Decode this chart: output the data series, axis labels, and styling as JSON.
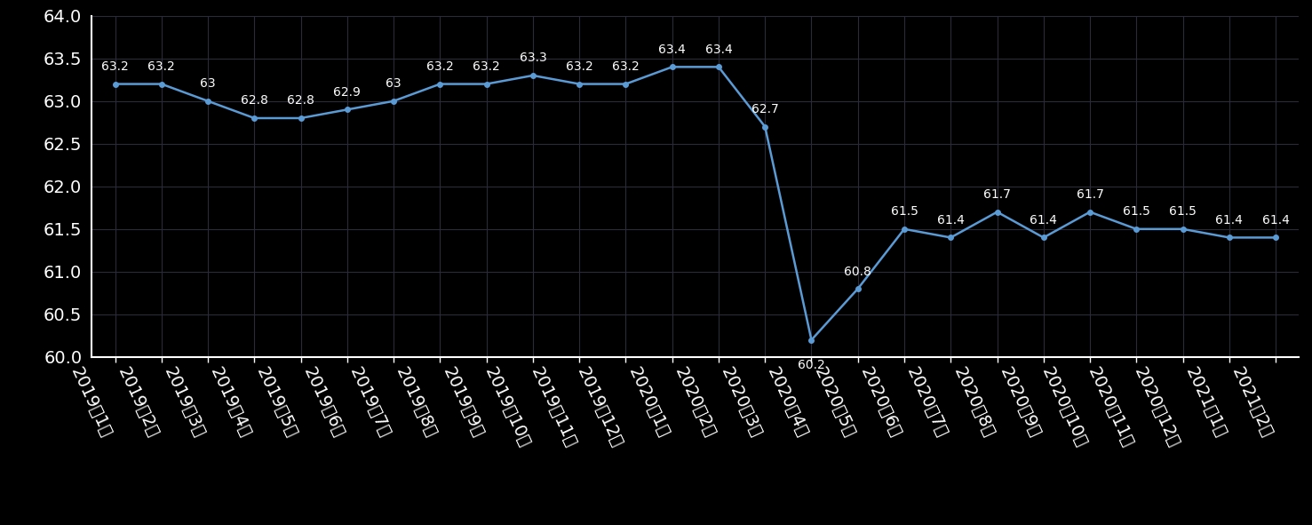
{
  "labels": [
    "2019年1月",
    "2019年2月",
    "2019年3月",
    "2019年4月",
    "2019年5月",
    "2019年6月",
    "2019年7月",
    "2019年8月",
    "2019年9月",
    "2019年10月",
    "2019年11月",
    "2019年12月",
    "2020年1月",
    "2020年2月",
    "2020年3月",
    "2020年4月",
    "2020年5月",
    "2020年6月",
    "2020年7月",
    "2020年8月",
    "2020年9月",
    "2020年10月",
    "2020年11月",
    "2020年12月",
    "2021年1月",
    "2021年2月"
  ],
  "values": [
    63.2,
    63.2,
    63.0,
    62.8,
    62.8,
    62.9,
    63.0,
    63.2,
    63.2,
    63.3,
    63.2,
    63.2,
    63.4,
    63.4,
    62.7,
    60.2,
    60.8,
    61.5,
    61.4,
    61.7,
    61.4,
    61.7,
    61.5,
    61.5,
    61.4,
    61.4
  ],
  "line_color": "#5b9bd5",
  "marker_color": "#5b9bd5",
  "bg_color": "#000000",
  "plot_bg_color": "#000000",
  "grid_color": "#2a2a3a",
  "text_color": "#ffffff",
  "ylim": [
    60,
    64
  ],
  "yticks": [
    60,
    60.5,
    61,
    61.5,
    62,
    62.5,
    63,
    63.5,
    64
  ],
  "tick_fontsize": 14,
  "annotation_fontsize": 10,
  "xlabel_rotation": -65
}
